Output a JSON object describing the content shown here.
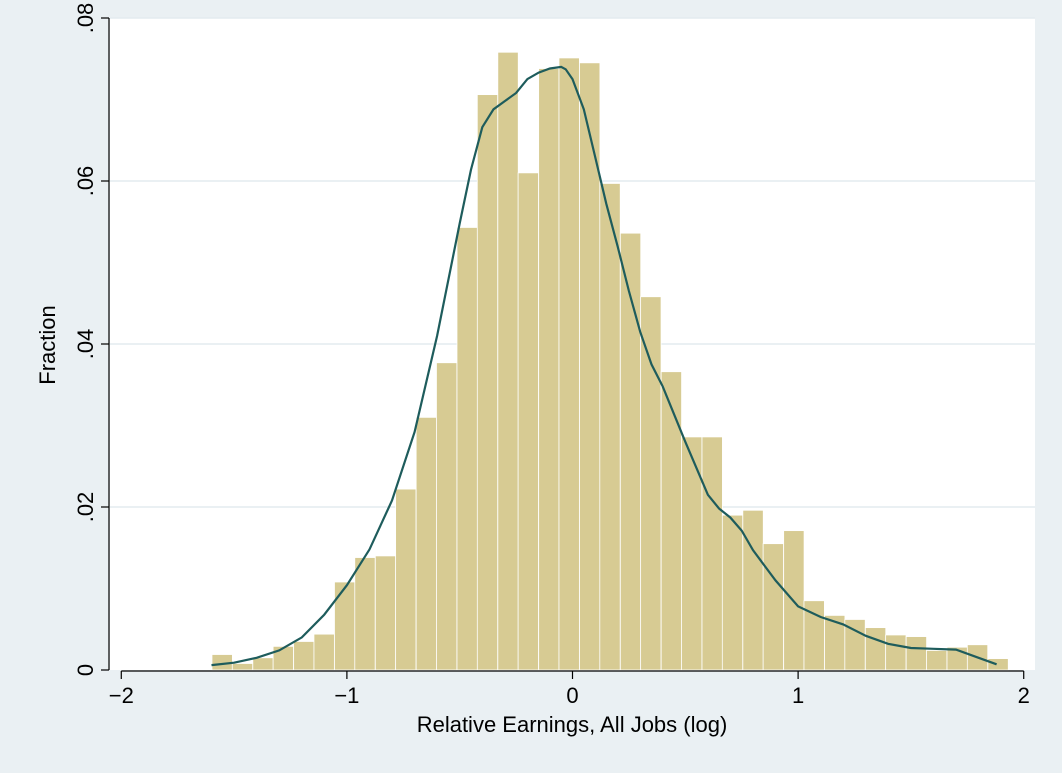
{
  "chart_data": {
    "type": "bar",
    "xlabel": "Relative Earnings, All Jobs (log)",
    "ylabel": "Fraction",
    "xlim": [
      -2.05,
      2.05
    ],
    "ylim": [
      0,
      0.08
    ],
    "x_ticks": [
      -2,
      -1,
      0,
      1,
      2
    ],
    "x_tick_labels": [
      "−2",
      "−1",
      "0",
      "1",
      "2"
    ],
    "y_ticks": [
      0,
      0.02,
      0.04,
      0.06,
      0.08
    ],
    "y_tick_labels": [
      "0",
      ".02",
      ".04",
      ".06",
      ".08"
    ],
    "grid": "horizontal",
    "bin_width": 0.0905,
    "bin_starts": [
      -1.598,
      -1.508,
      -1.417,
      -1.327,
      -1.236,
      -1.146,
      -1.055,
      -0.965,
      -0.874,
      -0.784,
      -0.693,
      -0.603,
      -0.512,
      -0.422,
      -0.331,
      -0.241,
      -0.15,
      -0.06,
      0.031,
      0.121,
      0.212,
      0.302,
      0.393,
      0.483,
      0.574,
      0.664,
      0.755,
      0.845,
      0.936,
      1.026,
      1.117,
      1.207,
      1.298,
      1.388,
      1.479,
      1.569,
      1.66,
      1.75,
      1.841
    ],
    "values": [
      0.0019,
      0.0008,
      0.0015,
      0.0029,
      0.0035,
      0.0044,
      0.0108,
      0.0138,
      0.014,
      0.0222,
      0.031,
      0.0377,
      0.0543,
      0.0706,
      0.0758,
      0.061,
      0.0738,
      0.0751,
      0.0745,
      0.0597,
      0.0536,
      0.0458,
      0.0366,
      0.0286,
      0.0286,
      0.019,
      0.0196,
      0.0155,
      0.0171,
      0.0085,
      0.0067,
      0.0062,
      0.0052,
      0.0043,
      0.0041,
      0.0024,
      0.0028,
      0.0031,
      0.0014
    ],
    "density_curve": {
      "x": [
        -1.6,
        -1.5,
        -1.4,
        -1.3,
        -1.2,
        -1.1,
        -1.0,
        -0.9,
        -0.8,
        -0.7,
        -0.6,
        -0.5,
        -0.45,
        -0.4,
        -0.35,
        -0.3,
        -0.25,
        -0.2,
        -0.15,
        -0.1,
        -0.05,
        -0.03,
        0.0,
        0.05,
        0.1,
        0.15,
        0.2,
        0.25,
        0.3,
        0.35,
        0.4,
        0.5,
        0.6,
        0.65,
        0.7,
        0.75,
        0.8,
        0.9,
        1.0,
        1.1,
        1.2,
        1.3,
        1.4,
        1.5,
        1.6,
        1.7,
        1.8,
        1.88
      ],
      "y": [
        0.0006,
        0.0009,
        0.0015,
        0.0024,
        0.004,
        0.0068,
        0.0104,
        0.0148,
        0.0208,
        0.0292,
        0.041,
        0.0548,
        0.0614,
        0.0666,
        0.0688,
        0.0698,
        0.0708,
        0.0725,
        0.0733,
        0.0738,
        0.074,
        0.0737,
        0.0725,
        0.0688,
        0.063,
        0.0572,
        0.052,
        0.0465,
        0.0415,
        0.0375,
        0.0348,
        0.028,
        0.0215,
        0.0198,
        0.0187,
        0.0171,
        0.0147,
        0.011,
        0.0078,
        0.0065,
        0.0056,
        0.0042,
        0.0032,
        0.0027,
        0.0026,
        0.0025,
        0.0015,
        0.0007
      ]
    },
    "colors": {
      "background": "#eaf0f3",
      "plot_background": "#ffffff",
      "bar_fill": "#d7cb93",
      "bar_stroke": "#ffffff",
      "curve": "#1e5c5c",
      "gridline": "#e3ebef"
    }
  }
}
